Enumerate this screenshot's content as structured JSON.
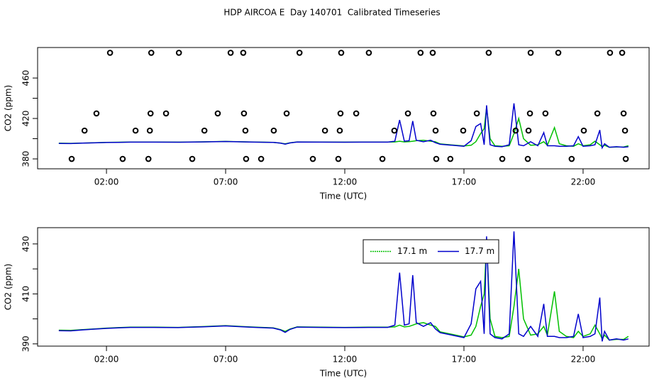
{
  "title": "HDP AIRCOA E  Day 140701  Calibrated Timeseries",
  "chart_data": [
    {
      "type": "line",
      "x_label": "Time (UTC)",
      "y_label": "CO2 (ppm)",
      "xlim": [
        -0.89,
        24.77
      ],
      "ylim": [
        370.2,
        490.2
      ],
      "xticks": [
        {
          "value": 2,
          "label": "02:00"
        },
        {
          "value": 7,
          "label": "07:00"
        },
        {
          "value": 12,
          "label": "12:00"
        },
        {
          "value": 17,
          "label": "17:00"
        },
        {
          "value": 22,
          "label": "22:00"
        }
      ],
      "yticks": [
        380,
        420,
        460
      ],
      "yminor_ticks": [
        400,
        440
      ],
      "x": [
        0,
        0.5,
        1,
        1.5,
        2,
        2.5,
        3,
        4,
        5,
        6,
        7,
        8,
        9,
        9.3,
        9.5,
        9.7,
        10,
        11,
        12,
        13,
        13.8,
        14.1,
        14.3,
        14.5,
        14.7,
        14.85,
        15.0,
        15.3,
        15.6,
        15.8,
        16.0,
        16.5,
        17.0,
        17.3,
        17.5,
        17.7,
        17.85,
        17.95,
        18.1,
        18.3,
        18.6,
        18.9,
        19.1,
        19.3,
        19.5,
        19.8,
        20.1,
        20.35,
        20.5,
        20.8,
        21.0,
        21.3,
        21.6,
        21.8,
        22.0,
        22.3,
        22.5,
        22.7,
        22.8,
        22.9,
        23.1,
        23.4,
        23.7,
        23.9
      ],
      "series": [
        {
          "name": "17.1 m",
          "color": "#00c000",
          "values": [
            395.5,
            395.4,
            395.7,
            396,
            396.3,
            396.5,
            396.7,
            396.7,
            396.6,
            396.9,
            397.3,
            396.8,
            396.4,
            395.7,
            395,
            395.9,
            396.8,
            396.7,
            396.6,
            396.7,
            396.7,
            396.8,
            397.5,
            396.8,
            397,
            397.5,
            398,
            398.5,
            397.5,
            397,
            394.8,
            393.8,
            392.8,
            393.5,
            397,
            405,
            410,
            431,
            400,
            393,
            392.5,
            393,
            405,
            420,
            400,
            393.5,
            394,
            397,
            393.5,
            411,
            395,
            393,
            392.5,
            395,
            393,
            394,
            397.5,
            394,
            392,
            393.5,
            391.5,
            391.8,
            391.8,
            393
          ]
        },
        {
          "name": "17.7 m",
          "color": "#0000cc",
          "values": [
            395.3,
            395.2,
            395.6,
            395.9,
            396.2,
            396.4,
            396.6,
            396.6,
            396.5,
            396.8,
            397.2,
            396.7,
            396.3,
            395.6,
            394.6,
            395.8,
            396.7,
            396.6,
            396.5,
            396.6,
            396.6,
            397.5,
            418.5,
            397.5,
            398,
            417.5,
            398.5,
            397,
            398.5,
            396,
            394.5,
            393.5,
            392.5,
            398,
            412,
            415,
            394,
            433,
            394,
            392.5,
            392,
            394,
            435,
            394,
            393,
            397,
            393,
            406,
            393,
            393,
            392.5,
            392.5,
            393,
            402,
            392.5,
            393,
            394,
            408.5,
            391,
            395,
            391.5,
            392,
            391.5,
            392
          ]
        }
      ],
      "points": {
        "x": [
          2.15,
          3.88,
          5.04,
          7.21,
          7.74,
          10.1,
          11.85,
          13.01,
          15.18,
          15.69,
          18.04,
          19.8,
          20.96,
          23.13,
          23.64,
          1.58,
          3.85,
          4.5,
          6.67,
          7.77,
          9.56,
          11.82,
          12.48,
          14.65,
          15.72,
          17.54,
          19.77,
          20.42,
          22.6,
          23.7,
          1.08,
          3.22,
          3.82,
          6.11,
          7.83,
          9.02,
          11.17,
          11.79,
          14.08,
          15.81,
          16.97,
          19.17,
          19.71,
          22.03,
          23.76,
          0.54,
          2.68,
          3.76,
          5.6,
          7.86,
          8.49,
          10.66,
          11.73,
          13.58,
          15.84,
          16.43,
          18.61,
          19.68,
          21.52,
          23.79
        ],
        "values": [
          485,
          485,
          485,
          485,
          485,
          485,
          485,
          485,
          485,
          485,
          485,
          485,
          485,
          485,
          485,
          425,
          425,
          425,
          425,
          425,
          425,
          425,
          425,
          425,
          425,
          425,
          425,
          425,
          425,
          425,
          408,
          408,
          408,
          408,
          408,
          408,
          408,
          408,
          408,
          408,
          408,
          408,
          408,
          408,
          408,
          380,
          380,
          380,
          380,
          380,
          380,
          380,
          380,
          380,
          380,
          380,
          380,
          380,
          380,
          380
        ]
      }
    },
    {
      "type": "line",
      "x_label": "Time (UTC)",
      "y_label": "CO2 (ppm)",
      "legend": "top-center",
      "xlim": [
        -0.89,
        24.77
      ],
      "ylim": [
        389.1,
        436.5
      ],
      "xticks": [
        {
          "value": 2,
          "label": "02:00"
        },
        {
          "value": 7,
          "label": "07:00"
        },
        {
          "value": 12,
          "label": "12:00"
        },
        {
          "value": 17,
          "label": "17:00"
        },
        {
          "value": 22,
          "label": "22:00"
        }
      ],
      "yticks": [
        390,
        410,
        430
      ],
      "yminor_ticks": [
        400,
        420
      ],
      "x": [
        0,
        0.5,
        1,
        1.5,
        2,
        2.5,
        3,
        4,
        5,
        6,
        7,
        8,
        9,
        9.3,
        9.5,
        9.7,
        10,
        11,
        12,
        13,
        13.8,
        14.1,
        14.3,
        14.5,
        14.7,
        14.85,
        15.0,
        15.3,
        15.6,
        15.8,
        16.0,
        16.5,
        17.0,
        17.3,
        17.5,
        17.7,
        17.85,
        17.95,
        18.1,
        18.3,
        18.6,
        18.9,
        19.1,
        19.3,
        19.5,
        19.8,
        20.1,
        20.35,
        20.5,
        20.8,
        21.0,
        21.3,
        21.6,
        21.8,
        22.0,
        22.3,
        22.5,
        22.7,
        22.8,
        22.9,
        23.1,
        23.4,
        23.7,
        23.9
      ],
      "series": [
        {
          "name": "17.1 m",
          "color": "#00c000",
          "values": [
            395.5,
            395.4,
            395.7,
            396,
            396.3,
            396.5,
            396.7,
            396.7,
            396.6,
            396.9,
            397.3,
            396.8,
            396.4,
            395.7,
            395,
            395.9,
            396.8,
            396.7,
            396.6,
            396.7,
            396.7,
            396.8,
            397.5,
            396.8,
            397,
            397.5,
            398,
            398.5,
            397.5,
            397,
            394.8,
            393.8,
            392.8,
            393.5,
            397,
            405,
            410,
            431,
            400,
            393,
            392.5,
            393,
            405,
            420,
            400,
            393.5,
            394,
            397,
            393.5,
            411,
            395,
            393,
            392.5,
            395,
            393,
            394,
            397.5,
            394,
            392,
            393.5,
            391.5,
            391.8,
            391.8,
            393
          ]
        },
        {
          "name": "17.7 m",
          "color": "#0000cc",
          "values": [
            395.3,
            395.2,
            395.6,
            395.9,
            396.2,
            396.4,
            396.6,
            396.6,
            396.5,
            396.8,
            397.2,
            396.7,
            396.3,
            395.6,
            394.6,
            395.8,
            396.7,
            396.6,
            396.5,
            396.6,
            396.6,
            397.5,
            418.5,
            397.5,
            398,
            417.5,
            398.5,
            397,
            398.5,
            396,
            394.5,
            393.5,
            392.5,
            398,
            412,
            415,
            394,
            433,
            394,
            392.5,
            392,
            394,
            435,
            394,
            393,
            397,
            393,
            406,
            393,
            393,
            392.5,
            392.5,
            393,
            402,
            392.5,
            393,
            394,
            408.5,
            391,
            395,
            391.5,
            392,
            391.5,
            392
          ]
        }
      ]
    }
  ]
}
